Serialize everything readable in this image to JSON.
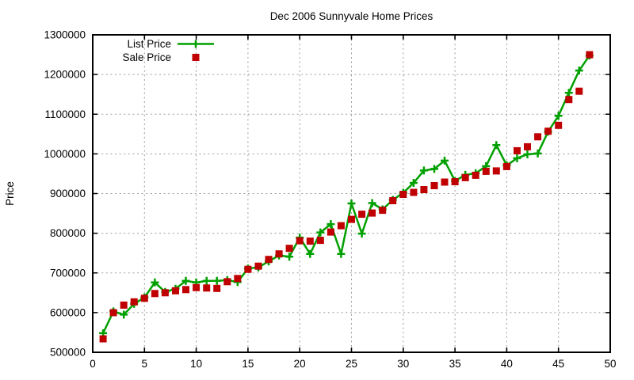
{
  "window": {
    "description": "gnuplot chart window"
  },
  "chart_data": {
    "type": "line",
    "title": "Dec 2006 Sunnyvale Home Prices",
    "xlabel": "",
    "ylabel": "Price",
    "xlim": [
      0,
      50
    ],
    "ylim": [
      500000,
      1300000
    ],
    "grid": true,
    "legend_position": "top-left-inside",
    "x_tick_labels": [
      "0",
      "5",
      "10",
      "15",
      "20",
      "25",
      "30",
      "35",
      "40",
      "45",
      "50"
    ],
    "y_tick_labels": [
      "500000",
      "600000",
      "700000",
      "800000",
      "900000",
      "1000000",
      "1100000",
      "1200000",
      "1300000"
    ],
    "x": [
      1,
      2,
      3,
      4,
      5,
      6,
      7,
      8,
      9,
      10,
      11,
      12,
      13,
      14,
      15,
      16,
      17,
      18,
      19,
      20,
      21,
      22,
      23,
      24,
      25,
      26,
      27,
      28,
      29,
      30,
      31,
      32,
      33,
      34,
      35,
      36,
      37,
      38,
      39,
      40,
      41,
      42,
      43,
      44,
      45,
      46,
      47,
      48
    ],
    "series": [
      {
        "name": "List Price",
        "style": "line-with-plus-markers",
        "color": "#00A000",
        "values": [
          548000,
          603000,
          595000,
          622000,
          638000,
          676000,
          652000,
          660000,
          680000,
          676000,
          680000,
          680000,
          682000,
          677000,
          711000,
          714000,
          729000,
          744000,
          741000,
          789000,
          748000,
          802000,
          823000,
          748000,
          875000,
          799000,
          876000,
          860000,
          884000,
          902000,
          927000,
          958000,
          962000,
          983000,
          932000,
          947000,
          951000,
          969000,
          1022000,
          971000,
          989000,
          999000,
          1001000,
          1056000,
          1096000,
          1154000,
          1210000,
          1248000
        ]
      },
      {
        "name": "Sale Price",
        "style": "square-points",
        "color": "#C00000",
        "values": [
          534000,
          600000,
          619000,
          627000,
          636000,
          648000,
          650000,
          655000,
          658000,
          663000,
          662000,
          661000,
          678000,
          686000,
          709000,
          717000,
          734000,
          748000,
          762000,
          781000,
          780000,
          782000,
          803000,
          819000,
          835000,
          848000,
          851000,
          858000,
          882000,
          898000,
          903000,
          910000,
          920000,
          929000,
          930000,
          940000,
          946000,
          956000,
          957000,
          968000,
          1008000,
          1018000,
          1043000,
          1057000,
          1072000,
          1137000,
          1158000,
          1250000
        ]
      }
    ],
    "legend": [
      {
        "label": "List Price",
        "marker": "line-plus",
        "color": "#00A000"
      },
      {
        "label": "Sale Price",
        "marker": "square",
        "color": "#C00000"
      }
    ],
    "colors": {
      "background": "#FFFFFF",
      "border": "#000000",
      "grid": "#9B9B9B",
      "text": "#000000",
      "list_price": "#00A000",
      "sale_price": "#C00000"
    }
  }
}
